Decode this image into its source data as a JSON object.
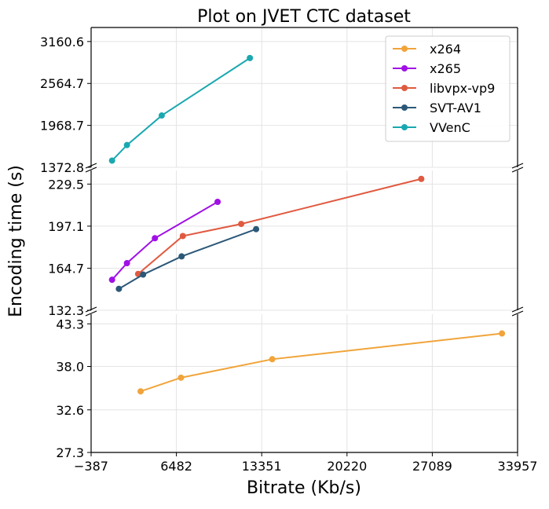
{
  "chart_data": {
    "type": "line",
    "title": "Plot on JVET CTC dataset",
    "xlabel": "Bitrate (Kb/s)",
    "ylabel": "Encoding time (s)",
    "xlim": [
      -387,
      33957
    ],
    "x_ticks": [
      "-387",
      "6482",
      "13351",
      "20220",
      "27089",
      "33957"
    ],
    "grid": true,
    "legend_position": "top-right",
    "panels": [
      {
        "name": "top",
        "ylim": [
          1372.8,
          3360
        ],
        "y_ticks": [
          "1372.8",
          "1968.7",
          "2564.7",
          "3160.6"
        ]
      },
      {
        "name": "middle",
        "ylim": [
          132.3,
          240
        ],
        "y_ticks": [
          "132.3",
          "164.7",
          "197.1",
          "229.5"
        ]
      },
      {
        "name": "bottom",
        "ylim": [
          27.3,
          44.5
        ],
        "y_ticks": [
          "27.3",
          "32.6",
          "38.0",
          "43.3"
        ]
      }
    ],
    "series": [
      {
        "name": "x264",
        "color": "#f0a43a",
        "panel": "bottom",
        "x": [
          3600,
          6850,
          14200,
          32700
        ],
        "y": [
          34.9,
          36.6,
          38.9,
          42.1
        ]
      },
      {
        "name": "x265",
        "color": "#a010e6",
        "panel": "middle",
        "x": [
          1300,
          2500,
          4750,
          9800
        ],
        "y": [
          155.8,
          168.6,
          187.8,
          215.8
        ]
      },
      {
        "name": "libvpx-vp9",
        "color": "#e05a40",
        "panel": "middle",
        "x": [
          3400,
          7000,
          11700,
          26200
        ],
        "y": [
          160.3,
          189.5,
          198.8,
          233.5
        ]
      },
      {
        "name": "SVT-AV1",
        "color": "#2c5878",
        "panel": "middle",
        "x": [
          1850,
          3800,
          6900,
          12900
        ],
        "y": [
          148.8,
          159.8,
          173.8,
          194.8
        ]
      },
      {
        "name": "VVenC",
        "color": "#1aa8b0",
        "panel": "top",
        "x": [
          1300,
          2500,
          5300,
          12400
        ],
        "y": [
          1468,
          1689,
          2109,
          2926
        ]
      }
    ]
  }
}
